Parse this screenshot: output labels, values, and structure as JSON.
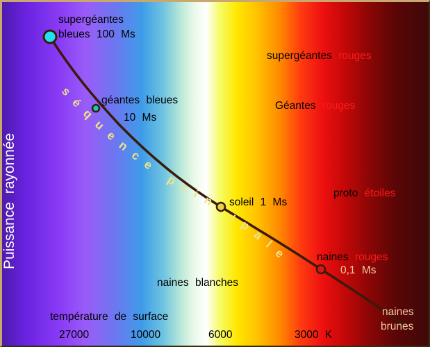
{
  "y_axis_label": "Puissance rayonnée",
  "x_axis_label": "température de surface",
  "temperature_ticks": [
    "27000",
    "10000",
    "6000",
    "3000  K"
  ],
  "main_sequence_label": "séquence principale",
  "stars": {
    "supergiants_blue": [
      "supergéantes",
      "bleues  100  Ms"
    ],
    "giants_blue": [
      "géantes  bleues",
      "10  Ms"
    ],
    "sun": "soleil  1  Ms",
    "red_dwarfs": {
      "word": "naines",
      "color_word": "rouges",
      "mass": "0,1  Ms"
    }
  },
  "regions": {
    "red_supergiants": {
      "word": "supergéantes",
      "color_word": "rouges"
    },
    "red_giants": {
      "word": "Géantes",
      "color_word": "rouges"
    },
    "protostars": {
      "word": "proto",
      "color_word": "étoiles"
    },
    "white_dwarfs": "naines  blanches",
    "brown_dwarfs": [
      "naines",
      "brunes"
    ]
  },
  "colors": {
    "curve": "#3a1a0a",
    "blue_star": "#22e0f0",
    "teal_star": "#18c8b8",
    "sun_star": "#e8d040",
    "red_star": "#d81818",
    "sequence_text": "#ece48a",
    "red_text": "#ff1a1a"
  }
}
